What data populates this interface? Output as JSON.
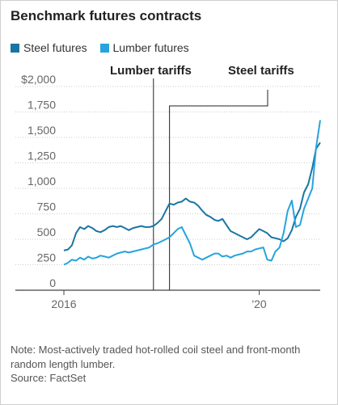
{
  "title": "Benchmark futures contracts",
  "legend": {
    "steel_label": "Steel futures",
    "lumber_label": "Lumber futures"
  },
  "note": "Note: Most-actively traded hot-rolled coil steel and front-month random length lumber.",
  "source": "Source: FactSet",
  "colors": {
    "steel": "#1b75a3",
    "lumber": "#27a4dd",
    "axis": "#444444",
    "grid": "#bdbdbd",
    "annotation": "#222222"
  },
  "chart_data": {
    "type": "line",
    "ylim": [
      0,
      2000
    ],
    "y_ticks": [
      {
        "value": 0,
        "label": "0"
      },
      {
        "value": 250,
        "label": "250"
      },
      {
        "value": 500,
        "label": "500"
      },
      {
        "value": 750,
        "label": "750"
      },
      {
        "value": 1000,
        "label": "1,000"
      },
      {
        "value": 1250,
        "label": "1,250"
      },
      {
        "value": 1500,
        "label": "1,500"
      },
      {
        "value": 1750,
        "label": "1,750"
      },
      {
        "value": 2000,
        "label": "$2,000"
      }
    ],
    "x_range": [
      "2016-01-01",
      "2021-04-01"
    ],
    "x_ticks": [
      {
        "date": "2016-01-01",
        "label": "2016"
      },
      {
        "date": "2020-01-01",
        "label": "'20"
      }
    ],
    "annotations": [
      {
        "label": "Lumber tariffs",
        "date": "2017-11-01"
      },
      {
        "label": "Steel tariffs",
        "date": "2018-03-01"
      }
    ],
    "series": [
      {
        "name": "Steel futures",
        "color": "#1b75a3",
        "points": [
          [
            "2016-01-01",
            390
          ],
          [
            "2016-02-01",
            400
          ],
          [
            "2016-03-01",
            440
          ],
          [
            "2016-04-01",
            560
          ],
          [
            "2016-05-01",
            620
          ],
          [
            "2016-06-01",
            600
          ],
          [
            "2016-07-01",
            630
          ],
          [
            "2016-08-01",
            610
          ],
          [
            "2016-09-01",
            580
          ],
          [
            "2016-10-01",
            570
          ],
          [
            "2016-11-01",
            590
          ],
          [
            "2016-12-01",
            620
          ],
          [
            "2017-01-01",
            630
          ],
          [
            "2017-02-01",
            620
          ],
          [
            "2017-03-01",
            630
          ],
          [
            "2017-04-01",
            610
          ],
          [
            "2017-05-01",
            590
          ],
          [
            "2017-06-01",
            610
          ],
          [
            "2017-07-01",
            620
          ],
          [
            "2017-08-01",
            630
          ],
          [
            "2017-09-01",
            620
          ],
          [
            "2017-10-01",
            620
          ],
          [
            "2017-11-01",
            630
          ],
          [
            "2017-12-01",
            660
          ],
          [
            "2018-01-01",
            700
          ],
          [
            "2018-02-01",
            780
          ],
          [
            "2018-03-01",
            850
          ],
          [
            "2018-04-01",
            840
          ],
          [
            "2018-05-01",
            860
          ],
          [
            "2018-06-01",
            870
          ],
          [
            "2018-07-01",
            900
          ],
          [
            "2018-08-01",
            870
          ],
          [
            "2018-09-01",
            860
          ],
          [
            "2018-10-01",
            830
          ],
          [
            "2018-11-01",
            780
          ],
          [
            "2018-12-01",
            740
          ],
          [
            "2019-01-01",
            720
          ],
          [
            "2019-02-01",
            690
          ],
          [
            "2019-03-01",
            680
          ],
          [
            "2019-04-01",
            700
          ],
          [
            "2019-05-01",
            640
          ],
          [
            "2019-06-01",
            580
          ],
          [
            "2019-07-01",
            560
          ],
          [
            "2019-08-01",
            540
          ],
          [
            "2019-09-01",
            520
          ],
          [
            "2019-10-01",
            500
          ],
          [
            "2019-11-01",
            520
          ],
          [
            "2019-12-01",
            560
          ],
          [
            "2020-01-01",
            600
          ],
          [
            "2020-02-01",
            580
          ],
          [
            "2020-03-01",
            560
          ],
          [
            "2020-04-01",
            520
          ],
          [
            "2020-05-01",
            510
          ],
          [
            "2020-06-01",
            500
          ],
          [
            "2020-07-01",
            480
          ],
          [
            "2020-08-01",
            510
          ],
          [
            "2020-09-01",
            590
          ],
          [
            "2020-10-01",
            720
          ],
          [
            "2020-11-01",
            800
          ],
          [
            "2020-12-01",
            960
          ],
          [
            "2021-01-01",
            1040
          ],
          [
            "2021-02-01",
            1200
          ],
          [
            "2021-03-01",
            1390
          ],
          [
            "2021-04-01",
            1450
          ]
        ]
      },
      {
        "name": "Lumber futures",
        "color": "#27a4dd",
        "points": [
          [
            "2016-01-01",
            250
          ],
          [
            "2016-02-01",
            270
          ],
          [
            "2016-03-01",
            300
          ],
          [
            "2016-04-01",
            290
          ],
          [
            "2016-05-01",
            320
          ],
          [
            "2016-06-01",
            300
          ],
          [
            "2016-07-01",
            330
          ],
          [
            "2016-08-01",
            310
          ],
          [
            "2016-09-01",
            320
          ],
          [
            "2016-10-01",
            340
          ],
          [
            "2016-11-01",
            330
          ],
          [
            "2016-12-01",
            320
          ],
          [
            "2017-01-01",
            340
          ],
          [
            "2017-02-01",
            360
          ],
          [
            "2017-03-01",
            370
          ],
          [
            "2017-04-01",
            380
          ],
          [
            "2017-05-01",
            370
          ],
          [
            "2017-06-01",
            380
          ],
          [
            "2017-07-01",
            390
          ],
          [
            "2017-08-01",
            400
          ],
          [
            "2017-09-01",
            410
          ],
          [
            "2017-10-01",
            420
          ],
          [
            "2017-11-01",
            450
          ],
          [
            "2017-12-01",
            460
          ],
          [
            "2018-01-01",
            480
          ],
          [
            "2018-02-01",
            500
          ],
          [
            "2018-03-01",
            520
          ],
          [
            "2018-04-01",
            560
          ],
          [
            "2018-05-01",
            600
          ],
          [
            "2018-06-01",
            620
          ],
          [
            "2018-07-01",
            540
          ],
          [
            "2018-08-01",
            460
          ],
          [
            "2018-09-01",
            340
          ],
          [
            "2018-10-01",
            320
          ],
          [
            "2018-11-01",
            300
          ],
          [
            "2018-12-01",
            320
          ],
          [
            "2019-01-01",
            340
          ],
          [
            "2019-02-01",
            360
          ],
          [
            "2019-03-01",
            360
          ],
          [
            "2019-04-01",
            330
          ],
          [
            "2019-05-01",
            340
          ],
          [
            "2019-06-01",
            320
          ],
          [
            "2019-07-01",
            340
          ],
          [
            "2019-08-01",
            350
          ],
          [
            "2019-09-01",
            360
          ],
          [
            "2019-10-01",
            380
          ],
          [
            "2019-11-01",
            380
          ],
          [
            "2019-12-01",
            400
          ],
          [
            "2020-01-01",
            410
          ],
          [
            "2020-02-01",
            420
          ],
          [
            "2020-03-01",
            300
          ],
          [
            "2020-04-01",
            290
          ],
          [
            "2020-05-01",
            380
          ],
          [
            "2020-06-01",
            420
          ],
          [
            "2020-07-01",
            560
          ],
          [
            "2020-08-01",
            780
          ],
          [
            "2020-09-01",
            880
          ],
          [
            "2020-10-01",
            620
          ],
          [
            "2020-11-01",
            640
          ],
          [
            "2020-12-01",
            800
          ],
          [
            "2021-01-01",
            900
          ],
          [
            "2021-02-01",
            1000
          ],
          [
            "2021-03-01",
            1400
          ],
          [
            "2021-04-01",
            1670
          ]
        ]
      }
    ]
  }
}
